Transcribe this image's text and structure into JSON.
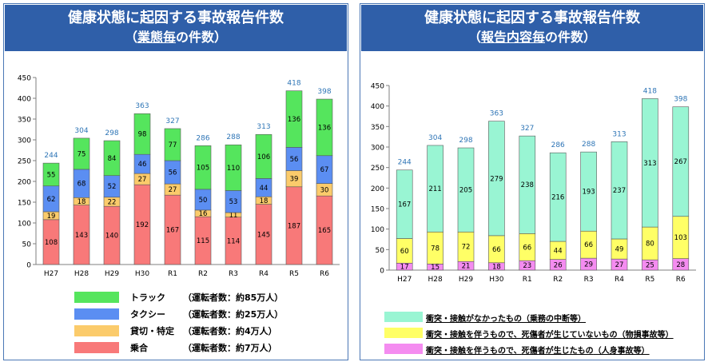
{
  "left_panel": {
    "title_line1": "健康状態に起因する事故報告件数",
    "title_line2_prefix": "（",
    "title_line2_em": "業態毎",
    "title_line2_suffix": "の件数）"
  },
  "right_panel": {
    "title_line1": "健康状態に起因する事故報告件数",
    "title_line2_prefix": "（",
    "title_line2_em": "報告内容毎",
    "title_line2_suffix": "の件数）"
  },
  "left_legend": [
    {
      "label": "トラック",
      "note": "（運転者数：約85万人）"
    },
    {
      "label": "タクシー",
      "note": "（運転者数：約25万人）"
    },
    {
      "label": "貸切・特定",
      "note": "（運転者数：約4万人）"
    },
    {
      "label": "乗合",
      "note": "（運転者数：約7万人）"
    }
  ],
  "right_legend": [
    {
      "p1": "衝突・接触がなかったもの",
      "p2": "（乗務の中断等）"
    },
    {
      "p1": "衝突・接触を伴うもので、",
      "p2": "死傷者が生じていないもの",
      "p3": "（物損事故等）"
    },
    {
      "p1": "衝突・接触を伴うもので、",
      "p2": "死傷者が生じたもの",
      "p3": "（人身事故等）"
    }
  ],
  "chart_data": [
    {
      "type": "bar",
      "stacked": true,
      "categories": [
        "H27",
        "H28",
        "H29",
        "H30",
        "R1",
        "R2",
        "R3",
        "R4",
        "R5",
        "R6"
      ],
      "ylim": [
        0,
        450
      ],
      "yticks": [
        0,
        50,
        100,
        150,
        200,
        250,
        300,
        350,
        400,
        450
      ],
      "grid": false,
      "series": [
        {
          "name": "乗合",
          "color": "#f87979",
          "values": [
            108,
            143,
            140,
            192,
            167,
            115,
            114,
            145,
            187,
            165
          ]
        },
        {
          "name": "貸切・特定",
          "color": "#fbcb6b",
          "values": [
            19,
            18,
            22,
            27,
            27,
            16,
            11,
            18,
            39,
            30
          ]
        },
        {
          "name": "タクシー",
          "color": "#5b8ef2",
          "values": [
            62,
            68,
            52,
            46,
            56,
            50,
            53,
            44,
            56,
            67
          ]
        },
        {
          "name": "トラック",
          "color": "#55e55d",
          "values": [
            55,
            75,
            84,
            98,
            77,
            105,
            110,
            106,
            136,
            136
          ]
        }
      ],
      "totals": [
        244,
        304,
        298,
        363,
        327,
        286,
        288,
        313,
        418,
        398
      ],
      "total_color": "#2e75b6"
    },
    {
      "type": "bar",
      "stacked": true,
      "categories": [
        "H27",
        "H28",
        "H29",
        "H30",
        "R1",
        "R2",
        "R3",
        "R4",
        "R5",
        "R6"
      ],
      "ylim": [
        0,
        450
      ],
      "yticks": [
        0,
        50,
        100,
        150,
        200,
        250,
        300,
        350,
        400,
        450
      ],
      "grid": false,
      "series": [
        {
          "name": "衝突・接触を伴うもので、死傷者が生じたもの（人身事故等）",
          "color": "#f48cf0",
          "values": [
            17,
            15,
            21,
            18,
            23,
            26,
            29,
            27,
            25,
            28
          ]
        },
        {
          "name": "衝突・接触を伴うもので、死傷者が生じていないもの（物損事故等）",
          "color": "#ffff66",
          "values": [
            60,
            78,
            72,
            66,
            66,
            44,
            66,
            49,
            80,
            103
          ]
        },
        {
          "name": "衝突・接触がなかったもの（乗務の中断等）",
          "color": "#99f5d3",
          "values": [
            167,
            211,
            205,
            279,
            238,
            216,
            193,
            237,
            313,
            267
          ]
        }
      ],
      "totals": [
        244,
        304,
        298,
        363,
        327,
        286,
        288,
        313,
        418,
        398
      ],
      "total_color": "#2e75b6"
    }
  ]
}
